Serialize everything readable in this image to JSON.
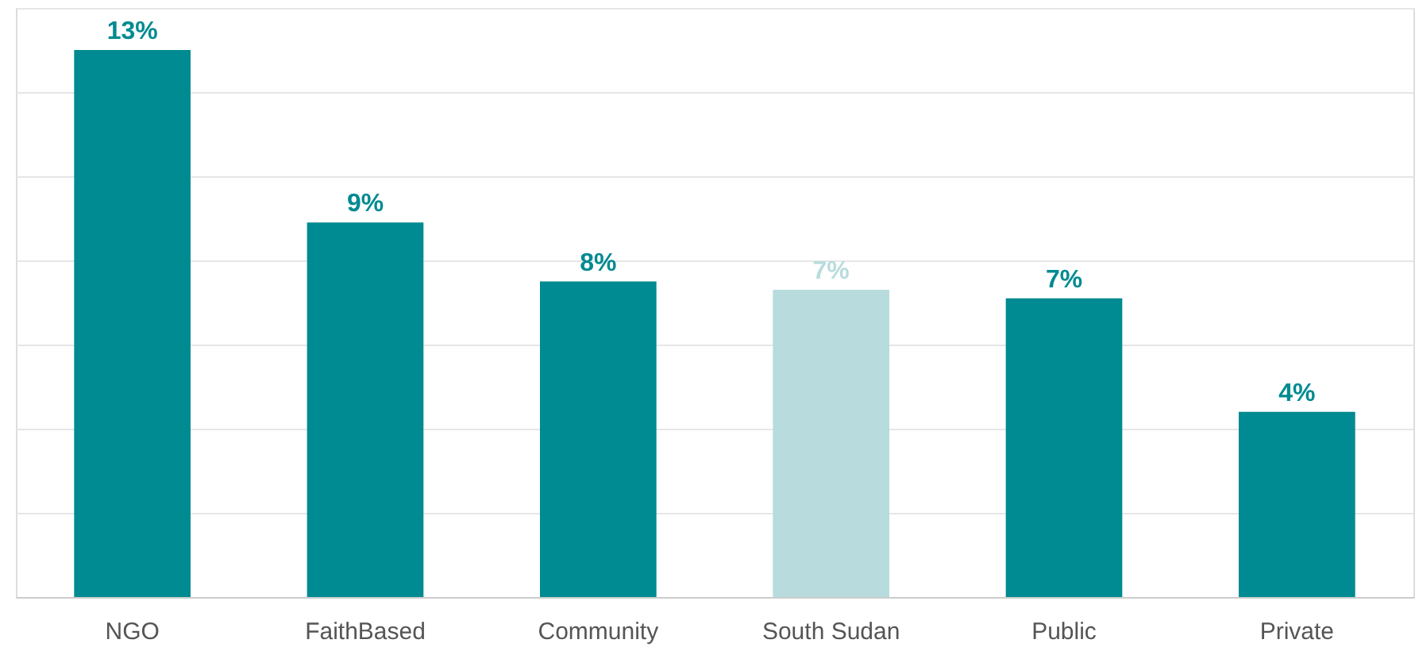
{
  "chart_data": {
    "type": "bar",
    "categories": [
      "NGO",
      "FaithBased",
      "Community",
      "South Sudan",
      "Public",
      "Private"
    ],
    "values": [
      13,
      8.9,
      7.5,
      7.3,
      7.1,
      4.4
    ],
    "value_labels": [
      "13%",
      "9%",
      "8%",
      "7%",
      "7%",
      "4%"
    ],
    "colors": [
      "#008a91",
      "#008a91",
      "#008a91",
      "#b8dcdd",
      "#008a91",
      "#008a91"
    ],
    "ylim": [
      0,
      14
    ],
    "yticks": [
      {
        "value": 0,
        "label": null
      },
      {
        "value": 2,
        "label": null
      },
      {
        "value": 4,
        "label": null
      },
      {
        "value": 6,
        "label": null
      },
      {
        "value": 8,
        "label": null
      },
      {
        "value": 10,
        "label": null
      },
      {
        "value": 12,
        "label": null
      },
      {
        "value": 14,
        "label": null
      }
    ],
    "tick_labels": "x",
    "grid": "y"
  }
}
